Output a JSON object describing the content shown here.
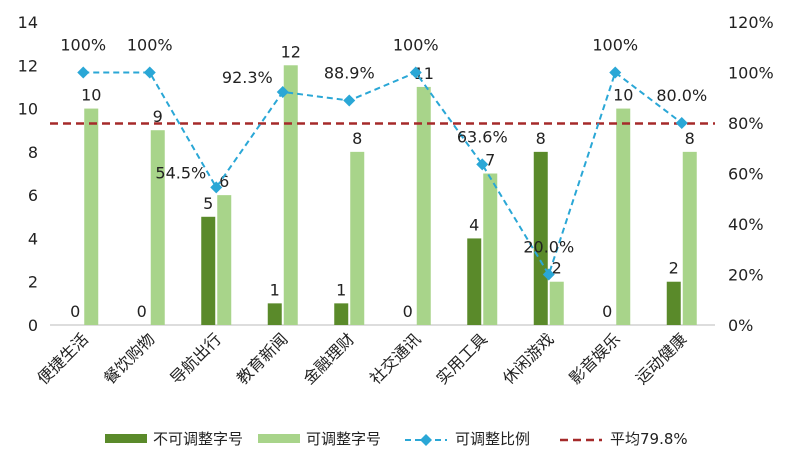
{
  "chart_data": {
    "type": "bar",
    "categories": [
      "便捷生活",
      "餐饮购物",
      "导航出行",
      "教育新闻",
      "金融理财",
      "社交通讯",
      "实用工具",
      "休闲游戏",
      "影音娱乐",
      "运动健康"
    ],
    "series": [
      {
        "name": "不可调整字号",
        "type": "bar",
        "axis": "left",
        "color": "#5a8a2a",
        "values": [
          0,
          0,
          5,
          1,
          1,
          0,
          4,
          8,
          0,
          2
        ]
      },
      {
        "name": "可调整字号",
        "type": "bar",
        "axis": "left",
        "color": "#a8d48a",
        "values": [
          10,
          9,
          6,
          12,
          8,
          11,
          7,
          2,
          10,
          8
        ]
      },
      {
        "name": "可调整比例",
        "type": "line",
        "axis": "right",
        "color": "#2aa7d6",
        "values": [
          100,
          100,
          54.5,
          92.3,
          88.9,
          100,
          63.6,
          20.0,
          100,
          80.0
        ],
        "labels": [
          "100%",
          "100%",
          "54.5%",
          "92.3%",
          "88.9%",
          "100%",
          "63.6%",
          "20.0%",
          "100%",
          "80.0%"
        ]
      },
      {
        "name": "平均79.8%",
        "type": "reference-line",
        "axis": "right",
        "color": "#a52a2a",
        "value": 79.8
      }
    ],
    "ylim": [
      0,
      14
    ],
    "yticks": [
      "0",
      "2",
      "4",
      "6",
      "8",
      "10",
      "12",
      "14"
    ],
    "y2lim": [
      0,
      120
    ],
    "y2ticks": [
      "0%",
      "20%",
      "40%",
      "60%",
      "80%",
      "100%",
      "120%"
    ],
    "legend_position": "bottom",
    "grid": false
  }
}
